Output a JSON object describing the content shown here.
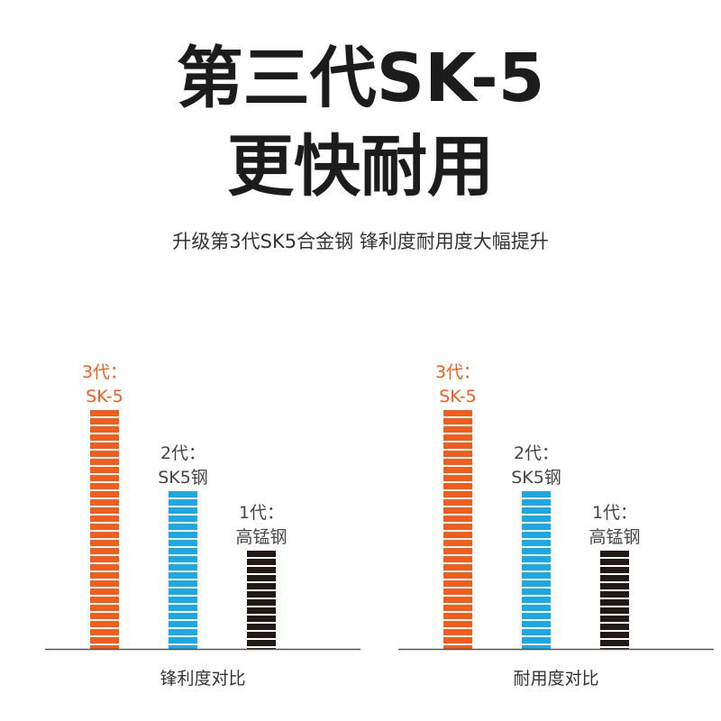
{
  "title_line1": "第三代SK-5",
  "title_line2": "更快耐用",
  "subtitle": "升级第3代SK5合金钢 锋利度耐用度大幅提升",
  "colors": {
    "gen3": "#f25c1c",
    "gen2": "#1aa9e3",
    "gen1": "#221815",
    "label_highlight": "#f25c1c",
    "label_normal": "#444444",
    "axis": "#555555"
  },
  "chart_data": [
    {
      "type": "bar",
      "title": "锋利度对比",
      "categories": [
        "3代：SK-5",
        "2代：SK5钢",
        "1代：高锰钢"
      ],
      "series": [
        {
          "values": [
            100,
            66,
            41
          ]
        }
      ],
      "ylim": [
        0,
        100
      ],
      "labels": [
        {
          "line1": "3代：",
          "line2": "SK-5"
        },
        {
          "line1": "2代：",
          "line2": "SK5钢"
        },
        {
          "line1": "1代：",
          "line2": "高锰钢"
        }
      ],
      "grid": false,
      "legend": "none"
    },
    {
      "type": "bar",
      "title": "耐用度对比",
      "categories": [
        "3代：SK-5",
        "2代：SK5钢",
        "1代：高锰钢"
      ],
      "series": [
        {
          "values": [
            100,
            66,
            41
          ]
        }
      ],
      "ylim": [
        0,
        100
      ],
      "labels": [
        {
          "line1": "3代：",
          "line2": "SK-5"
        },
        {
          "line1": "2代：",
          "line2": "SK5钢"
        },
        {
          "line1": "1代：",
          "line2": "高锰钢"
        }
      ],
      "grid": false,
      "legend": "none"
    }
  ]
}
